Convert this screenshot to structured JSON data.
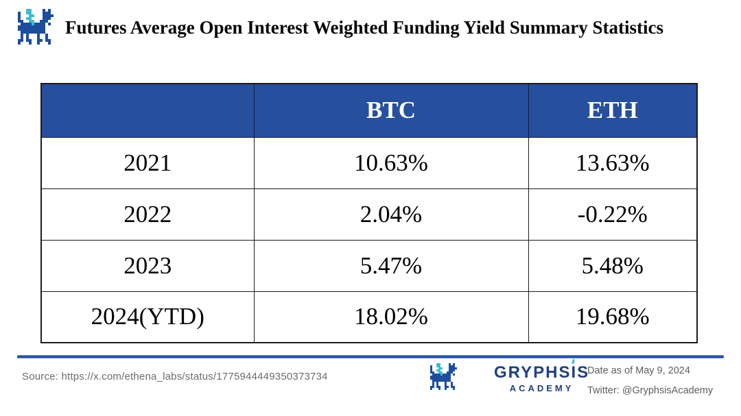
{
  "branding": {
    "logo_icon": "pixel-dragon-logo",
    "logo_colors": {
      "blue": "#1d4e9e",
      "cyan": "#3fbcd4"
    },
    "logo_pixels": [
      "....CC....B.B.",
      ".B..CC....BBB.",
      ".B...CC...BBBB",
      ".B..CC....BBB.",
      ".BB..CC..BBB..",
      "..BBBBCBBBB.B.",
      ".BBBBBBBBBB...",
      ".BBBBBBBBBB...",
      "..BBBBBBBBB...",
      "..B.B...B..B..",
      "..B.B...B..B..",
      ".BB.BB..BB.BB.",
      ".B...B..B...B."
    ]
  },
  "header": {
    "title": "Futures Average Open Interest Weighted Funding Yield Summary Statistics"
  },
  "table": {
    "header_bg": "#264f9e",
    "header_text_color": "#ffffff",
    "columns": [
      "",
      "BTC",
      "ETH"
    ],
    "rows": [
      {
        "year": "2021",
        "btc": "10.63%",
        "eth": "13.63%"
      },
      {
        "year": "2022",
        "btc": "2.04%",
        "eth": "-0.22%"
      },
      {
        "year": "2023",
        "btc": "5.47%",
        "eth": "5.48%"
      },
      {
        "year": "2024(YTD)",
        "btc": "18.02%",
        "eth": "19.68%"
      }
    ]
  },
  "chart_data": {
    "type": "table",
    "title": "Futures Average Open Interest Weighted Funding Yield Summary Statistics",
    "columns": [
      "",
      "BTC",
      "ETH"
    ],
    "categories": [
      "2021",
      "2022",
      "2023",
      "2024(YTD)"
    ],
    "series": [
      {
        "name": "BTC",
        "unit": "%",
        "values": [
          10.63,
          2.04,
          5.47,
          18.02
        ]
      },
      {
        "name": "ETH",
        "unit": "%",
        "values": [
          13.63,
          -0.22,
          5.48,
          19.68
        ]
      }
    ]
  },
  "footer": {
    "source": "Source: https://x.com/ethena_labs/status/1775944449350373734",
    "brand": {
      "part1": "GRYPHS",
      "part2": "I",
      "part3": "S",
      "subtitle": "ACADEMY"
    },
    "date": "Date as of May 9, 2024",
    "twitter": "Twitter: @GryphsisAcademy",
    "divider_color": "#2a4fa3"
  }
}
